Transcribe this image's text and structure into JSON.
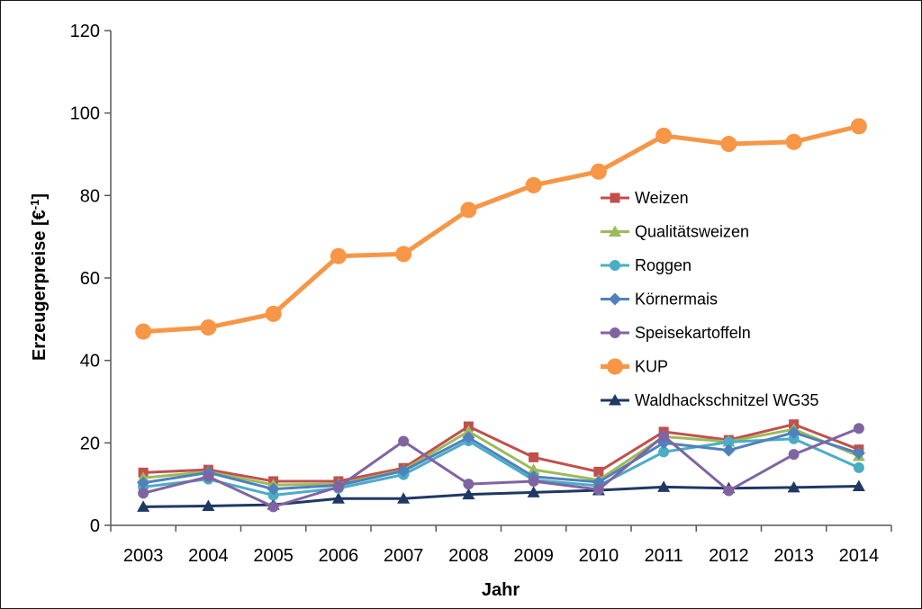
{
  "chart_data": {
    "type": "line",
    "xlabel": "Jahr",
    "ylabel_main": "Erzeugerpreise [€",
    "ylabel_sup": "-1",
    "ylabel_end": "]",
    "ylim": [
      0,
      120
    ],
    "yticks": [
      "0",
      "20",
      "40",
      "60",
      "80",
      "100",
      "120"
    ],
    "categories": [
      "2003",
      "2004",
      "2005",
      "2006",
      "2007",
      "2008",
      "2009",
      "2010",
      "2011",
      "2012",
      "2013",
      "2014"
    ],
    "grid": false,
    "legend_position": "right-center",
    "series": [
      {
        "name": "Weizen",
        "color": "#c0504d",
        "marker": "square",
        "values": [
          12.8,
          13.5,
          10.7,
          10.7,
          13.9,
          24.0,
          16.5,
          13.0,
          22.7,
          20.7,
          24.5,
          18.4
        ]
      },
      {
        "name": "Qualitätsweizen",
        "color": "#9bbb59",
        "marker": "triangle",
        "values": [
          11.5,
          13.0,
          9.8,
          10.0,
          13.4,
          22.8,
          13.5,
          11.0,
          21.5,
          20.3,
          23.3,
          16.8
        ]
      },
      {
        "name": "Roggen",
        "color": "#4bacc6",
        "marker": "circle",
        "values": [
          9.3,
          11.2,
          7.3,
          9.0,
          12.3,
          20.5,
          11.0,
          9.6,
          17.8,
          20.2,
          21.0,
          14.0
        ]
      },
      {
        "name": "Körnermais",
        "color": "#4f81bd",
        "marker": "diamond",
        "values": [
          10.3,
          12.8,
          8.8,
          9.7,
          13.2,
          21.3,
          11.8,
          10.5,
          20.0,
          18.2,
          22.5,
          17.5
        ]
      },
      {
        "name": "Speisekartoffeln",
        "color": "#8064a2",
        "marker": "circle",
        "values": [
          7.8,
          11.8,
          4.5,
          9.3,
          20.4,
          10.0,
          10.7,
          8.7,
          21.7,
          8.4,
          17.2,
          23.5
        ]
      },
      {
        "name": "KUP",
        "color": "#f79646",
        "marker": "circle-large",
        "values": [
          47.0,
          48.0,
          51.3,
          65.3,
          65.8,
          76.5,
          82.5,
          85.8,
          94.5,
          92.5,
          93.0,
          96.8
        ]
      },
      {
        "name": "Waldhackschnitzel WG35",
        "color": "#1f3864",
        "marker": "triangle",
        "values": [
          4.5,
          4.7,
          5.0,
          6.5,
          6.5,
          7.5,
          8.0,
          8.5,
          9.3,
          9.0,
          9.2,
          9.5
        ]
      }
    ]
  }
}
